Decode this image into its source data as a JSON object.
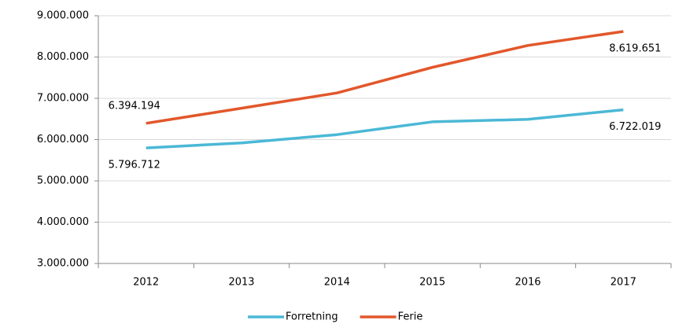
{
  "chart_data": {
    "type": "line",
    "categories": [
      "2012",
      "2013",
      "2014",
      "2015",
      "2016",
      "2017"
    ],
    "series": [
      {
        "name": "Forretning",
        "color": "#4bb8d6",
        "values": [
          5796712,
          5920000,
          6120000,
          6430000,
          6490000,
          6722019
        ],
        "value_labels": [
          "5.796.712",
          null,
          null,
          null,
          null,
          "6.722.019"
        ]
      },
      {
        "name": "Ferie",
        "color": "#e2572b",
        "values": [
          6394194,
          6760000,
          7130000,
          7750000,
          8280000,
          8619651
        ],
        "value_labels": [
          "6.394.194",
          null,
          null,
          null,
          null,
          "8.619.651"
        ]
      }
    ],
    "ylim": [
      3000000,
      9000000
    ],
    "yticks": [
      {
        "value": 3000000,
        "label": "3.000.000"
      },
      {
        "value": 4000000,
        "label": "4.000.000"
      },
      {
        "value": 5000000,
        "label": "5.000.000"
      },
      {
        "value": 6000000,
        "label": "6.000.000"
      },
      {
        "value": 7000000,
        "label": "7.000.000"
      },
      {
        "value": 8000000,
        "label": "8.000.000"
      },
      {
        "value": 9000000,
        "label": "9.000.000"
      }
    ],
    "grid": true,
    "legend": "bottom"
  }
}
